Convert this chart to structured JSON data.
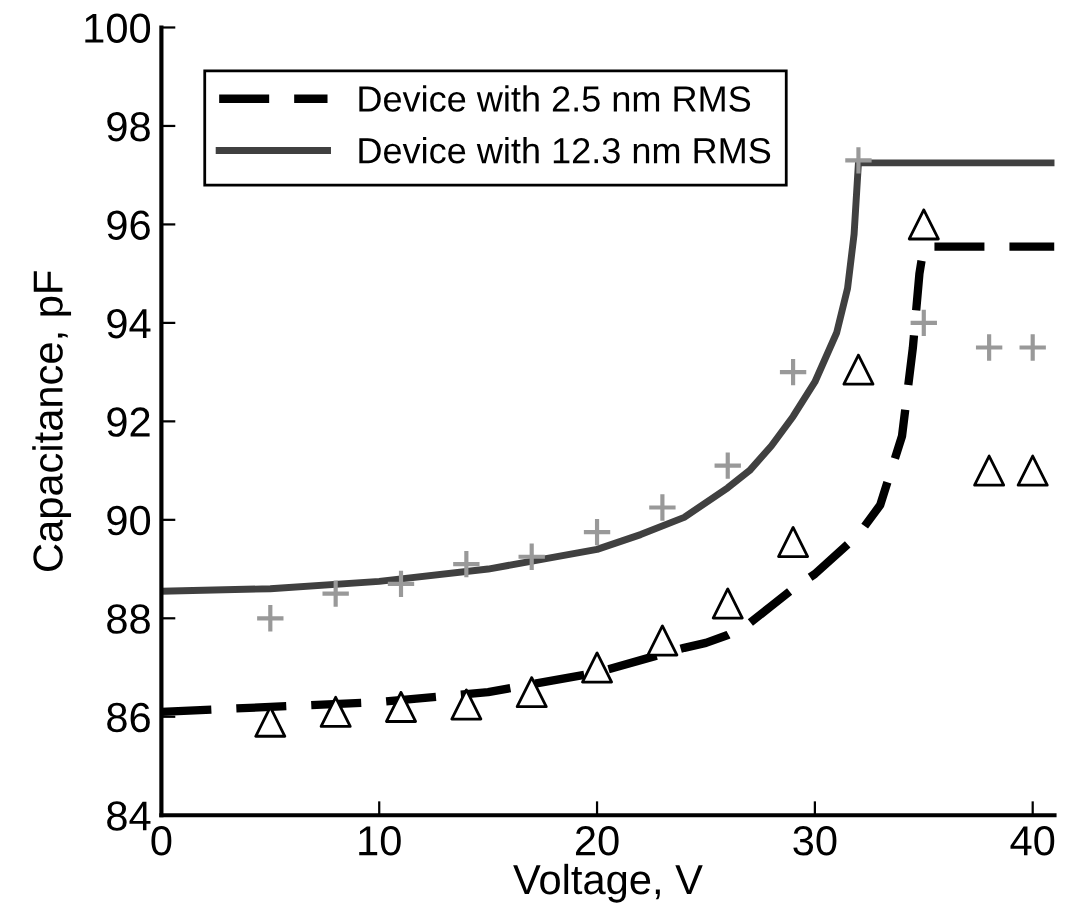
{
  "chart_data": {
    "type": "line",
    "xlabel": "Voltage, V",
    "ylabel": "Capacitance, pF",
    "xlim": [
      0,
      41
    ],
    "ylim": [
      84,
      100
    ],
    "xticks": [
      0,
      10,
      20,
      30,
      40
    ],
    "yticks": [
      84,
      86,
      88,
      90,
      92,
      94,
      96,
      98,
      100
    ],
    "grid": false,
    "legend": "top left",
    "series": [
      {
        "name": "Device with 2.5 nm RMS",
        "line_style": "dashed",
        "marker": "none",
        "color": "#000000",
        "x": [
          0,
          5,
          10,
          15,
          20,
          24,
          25,
          26,
          27,
          28,
          29,
          30,
          32,
          33,
          34,
          34.5,
          34.8,
          35,
          41
        ],
        "values": [
          86.1,
          86.2,
          86.3,
          86.5,
          86.9,
          87.4,
          87.5,
          87.66,
          87.9,
          88.25,
          88.6,
          88.9,
          89.7,
          90.3,
          91.7,
          93.5,
          95,
          95.55,
          95.55
        ]
      },
      {
        "name": "Device with 12.3 nm RMS",
        "line_style": "solid",
        "marker": "none",
        "color": "#404040",
        "x": [
          0,
          5,
          10,
          15,
          20,
          22,
          24,
          26,
          27,
          28,
          29,
          30,
          31,
          31.5,
          31.8,
          32,
          41
        ],
        "values": [
          88.55,
          88.6,
          88.75,
          89.0,
          89.4,
          89.7,
          90.05,
          90.65,
          91.0,
          91.5,
          92.1,
          92.8,
          93.8,
          94.7,
          95.8,
          97.25,
          97.25
        ]
      },
      {
        "type": "scatter",
        "marker": "cross",
        "color": "#999999",
        "x": [
          5,
          8,
          11,
          14,
          17,
          20,
          23,
          26,
          29,
          32,
          35,
          38,
          40
        ],
        "values": [
          88.0,
          88.5,
          88.7,
          89.1,
          89.25,
          89.75,
          90.25,
          91.1,
          93.0,
          97.3,
          94.0,
          93.5,
          93.5
        ]
      },
      {
        "type": "scatter",
        "marker": "triangle",
        "color": "#000000",
        "x": [
          5,
          8,
          11,
          14,
          17,
          20,
          23,
          26,
          29,
          32,
          35,
          38,
          40
        ],
        "values": [
          85.9,
          86.1,
          86.2,
          86.25,
          86.5,
          87.0,
          87.55,
          88.3,
          89.55,
          93.05,
          96.0,
          91.0,
          91.0
        ]
      }
    ]
  }
}
